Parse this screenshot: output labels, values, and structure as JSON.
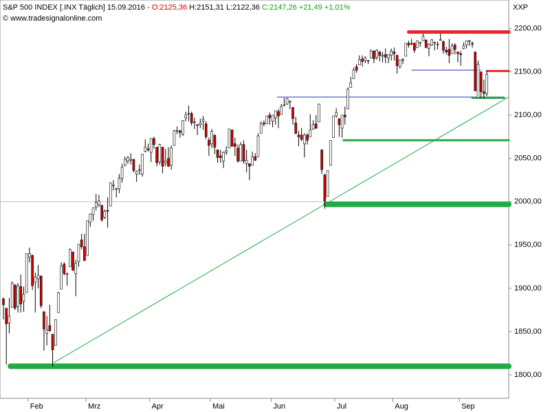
{
  "header": {
    "title": "S&P 500 INDEX [.INX  Täglich]",
    "date": "15.09.2016",
    "open": "- O:2125,36",
    "high": "H:2151,31",
    "low": "L:2122,36",
    "close": "C:2147,26 +21,49 +1,01%",
    "source": "© www.tradesignalonline.com",
    "symbol": "XXP"
  },
  "chart_data": {
    "type": "candlestick",
    "up_color": "#ffffff",
    "down_color": "#d40000",
    "ylim": [
      1773,
      2233
    ],
    "yticks": [
      {
        "value": 1800,
        "label": "1800,00"
      },
      {
        "value": 1850,
        "label": "1850,00"
      },
      {
        "value": 1900,
        "label": "1900,00"
      },
      {
        "value": 1950,
        "label": "1950,00"
      },
      {
        "value": 2000,
        "label": "2000,00"
      },
      {
        "value": 2050,
        "label": "2050,00"
      },
      {
        "value": 2100,
        "label": "2100,00"
      },
      {
        "value": 2150,
        "label": "2150,00"
      },
      {
        "value": 2200,
        "label": "2200,00"
      }
    ],
    "categories": [
      null,
      null,
      null,
      null,
      null,
      null,
      null,
      null,
      null,
      "Feb",
      null,
      null,
      null,
      null,
      null,
      null,
      null,
      null,
      null,
      null,
      null,
      null,
      null,
      null,
      null,
      null,
      null,
      null,
      null,
      "Mrz",
      null,
      null,
      null,
      null,
      null,
      null,
      null,
      null,
      null,
      null,
      null,
      null,
      null,
      null,
      null,
      null,
      null,
      null,
      null,
      null,
      null,
      "Apr",
      null,
      null,
      null,
      null,
      null,
      null,
      null,
      null,
      null,
      null,
      null,
      null,
      null,
      null,
      null,
      null,
      null,
      null,
      null,
      null,
      "Mai",
      null,
      null,
      null,
      null,
      null,
      null,
      null,
      null,
      null,
      null,
      null,
      null,
      null,
      null,
      null,
      null,
      null,
      null,
      null,
      null,
      "Jun",
      null,
      null,
      null,
      null,
      null,
      null,
      null,
      null,
      null,
      null,
      null,
      null,
      null,
      null,
      null,
      null,
      null,
      null,
      null,
      null,
      null,
      "Jul",
      null,
      null,
      null,
      null,
      null,
      null,
      null,
      null,
      null,
      null,
      null,
      null,
      null,
      null,
      null,
      null,
      null,
      null,
      null,
      "Aug",
      null,
      null,
      null,
      null,
      null,
      null,
      null,
      null,
      null,
      null,
      null,
      null,
      null,
      null,
      null,
      null,
      null,
      null,
      null,
      null,
      null,
      null,
      "Sep",
      null,
      null,
      null,
      null,
      null,
      null,
      null,
      null,
      null
    ],
    "candles": [
      [
        1888,
        1889,
        1864,
        1881
      ],
      [
        1877,
        1877,
        1812,
        1859
      ],
      [
        1860,
        1889,
        1848,
        1868
      ],
      [
        1878,
        1908,
        1878,
        1906
      ],
      [
        1904,
        1904,
        1875,
        1877
      ],
      [
        1879,
        1906,
        1872,
        1903
      ],
      [
        1902,
        1916,
        1872,
        1882
      ],
      [
        1885,
        1902,
        1873,
        1893
      ],
      [
        1895,
        1940,
        1895,
        1940
      ],
      [
        1936,
        1947,
        1930,
        1940
      ],
      [
        1938,
        1939,
        1898,
        1903
      ],
      [
        1907,
        1918,
        1872,
        1913
      ],
      [
        1911,
        1927,
        1900,
        1915
      ],
      [
        1914,
        1915,
        1877,
        1880
      ],
      [
        1873,
        1873,
        1828,
        1853
      ],
      [
        1848,
        1868,
        1834,
        1852
      ],
      [
        1857,
        1881,
        1850,
        1851
      ],
      [
        1847,
        1847,
        1810,
        1829
      ],
      [
        1834,
        1864,
        1834,
        1864
      ],
      [
        1872,
        1896,
        1872,
        1895
      ],
      [
        1899,
        1930,
        1899,
        1926
      ],
      [
        1928,
        1930,
        1915,
        1917
      ],
      [
        1917,
        1918,
        1903,
        1917
      ],
      [
        1925,
        1946,
        1925,
        1945
      ],
      [
        1942,
        1942,
        1920,
        1921
      ],
      [
        1917,
        1933,
        1891,
        1929
      ],
      [
        1931,
        1951,
        1925,
        1951
      ],
      [
        1956,
        1963,
        1945,
        1948
      ],
      [
        1948,
        1963,
        1932,
        1932
      ],
      [
        1938,
        1978,
        1938,
        1978
      ],
      [
        1976,
        1986,
        1971,
        1986
      ],
      [
        1985,
        1993,
        1978,
        1993
      ],
      [
        1994,
        2009,
        1990,
        1999
      ],
      [
        1996,
        2008,
        1994,
        2001
      ],
      [
        1996,
        1996,
        1977,
        1979
      ],
      [
        1982,
        1991,
        1980,
        1989
      ],
      [
        1990,
        2005,
        1970,
        1989
      ],
      [
        1995,
        2022,
        1995,
        2022
      ],
      [
        2019,
        2025,
        2013,
        2019
      ],
      [
        2015,
        2016,
        2005,
        2015
      ],
      [
        2015,
        2032,
        2010,
        2027
      ],
      [
        2027,
        2044,
        2022,
        2040
      ],
      [
        2042,
        2052,
        2041,
        2049
      ],
      [
        2047,
        2053,
        2044,
        2051
      ],
      [
        2048,
        2056,
        2043,
        2049
      ],
      [
        2049,
        2049,
        2034,
        2036
      ],
      [
        2032,
        2036,
        2023,
        2035
      ],
      [
        2037,
        2043,
        2031,
        2037
      ],
      [
        2032,
        2055,
        2029,
        2055
      ],
      [
        2058,
        2072,
        2057,
        2063
      ],
      [
        2061,
        2067,
        2058,
        2060
      ],
      [
        2057,
        2073,
        2046,
        2073
      ],
      [
        2073,
        2075,
        2061,
        2066
      ],
      [
        2063,
        2063,
        2041,
        2045
      ],
      [
        2046,
        2067,
        2043,
        2066
      ],
      [
        2063,
        2063,
        2033,
        2041
      ],
      [
        2045,
        2061,
        2041,
        2047
      ],
      [
        2050,
        2063,
        2040,
        2041
      ],
      [
        2042,
        2065,
        2037,
        2062
      ],
      [
        2065,
        2083,
        2065,
        2082
      ],
      [
        2082,
        2087,
        2078,
        2082
      ],
      [
        2082,
        2083,
        2074,
        2080
      ],
      [
        2078,
        2094,
        2076,
        2094
      ],
      [
        2097,
        2104,
        2093,
        2100
      ],
      [
        2102,
        2111,
        2093,
        2102
      ],
      [
        2102,
        2104,
        2088,
        2091
      ],
      [
        2092,
        2097,
        2084,
        2092
      ],
      [
        2089,
        2089,
        2077,
        2088
      ],
      [
        2089,
        2096,
        2085,
        2091
      ],
      [
        2093,
        2099,
        2083,
        2095
      ],
      [
        2090,
        2093,
        2072,
        2075
      ],
      [
        2071,
        2074,
        2053,
        2065
      ],
      [
        2067,
        2084,
        2062,
        2081
      ],
      [
        2077,
        2077,
        2055,
        2063
      ],
      [
        2060,
        2060,
        2045,
        2051
      ],
      [
        2053,
        2060,
        2045,
        2051
      ],
      [
        2047,
        2058,
        2039,
        2057
      ],
      [
        2057,
        2064,
        2054,
        2059
      ],
      [
        2062,
        2084,
        2062,
        2084
      ],
      [
        2083,
        2083,
        2064,
        2064
      ],
      [
        2067,
        2074,
        2053,
        2064
      ],
      [
        2062,
        2066,
        2045,
        2047
      ],
      [
        2047,
        2069,
        2047,
        2066
      ],
      [
        2066,
        2071,
        2044,
        2047
      ],
      [
        2044,
        2060,
        2034,
        2048
      ],
      [
        2044,
        2044,
        2025,
        2041
      ],
      [
        2042,
        2058,
        2042,
        2052
      ],
      [
        2052,
        2056,
        2047,
        2048
      ],
      [
        2052,
        2079,
        2052,
        2076
      ],
      [
        2079,
        2093,
        2079,
        2090
      ],
      [
        2091,
        2094,
        2087,
        2090
      ],
      [
        2090,
        2099,
        2090,
        2099
      ],
      [
        2100,
        2103,
        2089,
        2097
      ],
      [
        2093,
        2100,
        2086,
        2100
      ],
      [
        2097,
        2105,
        2089,
        2105
      ],
      [
        2104,
        2107,
        2085,
        2099
      ],
      [
        2101,
        2113,
        2101,
        2110
      ],
      [
        2111,
        2120,
        2110,
        2112
      ],
      [
        2113,
        2120,
        2112,
        2119
      ],
      [
        2115,
        2117,
        2107,
        2116
      ],
      [
        2109,
        2109,
        2089,
        2096
      ],
      [
        2091,
        2098,
        2078,
        2079
      ],
      [
        2077,
        2082,
        2064,
        2075
      ],
      [
        2077,
        2085,
        2070,
        2072
      ],
      [
        2067,
        2079,
        2051,
        2077
      ],
      [
        2077,
        2079,
        2066,
        2071
      ],
      [
        2075,
        2101,
        2075,
        2083
      ],
      [
        2084,
        2094,
        2083,
        2089
      ],
      [
        2090,
        2100,
        2084,
        2085
      ],
      [
        2092,
        2113,
        2092,
        2113
      ],
      [
        2060,
        2060,
        2032,
        2037
      ],
      [
        2031,
        2032,
        1992,
        2001
      ],
      [
        2006,
        2036,
        2006,
        2036
      ],
      [
        2042,
        2071,
        2042,
        2071
      ],
      [
        2074,
        2099,
        2074,
        2099
      ],
      [
        2099,
        2108,
        2097,
        2103
      ],
      [
        2096,
        2096,
        2075,
        2089
      ],
      [
        2085,
        2100,
        2074,
        2100
      ],
      [
        2100,
        2110,
        2089,
        2098
      ],
      [
        2107,
        2132,
        2107,
        2130
      ],
      [
        2132,
        2144,
        2132,
        2137
      ],
      [
        2142,
        2155,
        2142,
        2152
      ],
      [
        2156,
        2159,
        2149,
        2152
      ],
      [
        2158,
        2169,
        2158,
        2164
      ],
      [
        2165,
        2169,
        2156,
        2162
      ],
      [
        2163,
        2168,
        2160,
        2166
      ],
      [
        2163,
        2164,
        2159,
        2163
      ],
      [
        2166,
        2176,
        2166,
        2174
      ],
      [
        2174,
        2175,
        2160,
        2165
      ],
      [
        2167,
        2176,
        2164,
        2175
      ],
      [
        2173,
        2174,
        2162,
        2169
      ],
      [
        2168,
        2173,
        2161,
        2169
      ],
      [
        2170,
        2177,
        2160,
        2167
      ],
      [
        2166,
        2170,
        2160,
        2170
      ],
      [
        2169,
        2177,
        2163,
        2174
      ],
      [
        2173,
        2178,
        2163,
        2171
      ],
      [
        2169,
        2170,
        2148,
        2157
      ],
      [
        2156,
        2164,
        2154,
        2164
      ],
      [
        2164,
        2166,
        2159,
        2164
      ],
      [
        2168,
        2183,
        2168,
        2183
      ],
      [
        2183,
        2186,
        2178,
        2181
      ],
      [
        2183,
        2188,
        2181,
        2182
      ],
      [
        2183,
        2184,
        2172,
        2175
      ],
      [
        2178,
        2186,
        2178,
        2186
      ],
      [
        2183,
        2185,
        2179,
        2184
      ],
      [
        2186,
        2194,
        2186,
        2191
      ],
      [
        2187,
        2187,
        2178,
        2178
      ],
      [
        2177,
        2183,
        2168,
        2182
      ],
      [
        2181,
        2188,
        2180,
        2187
      ],
      [
        2184,
        2185,
        2175,
        2184
      ],
      [
        2182,
        2185,
        2176,
        2182
      ],
      [
        2187,
        2194,
        2187,
        2187
      ],
      [
        2185,
        2186,
        2171,
        2175
      ],
      [
        2175,
        2179,
        2170,
        2173
      ],
      [
        2176,
        2188,
        2160,
        2169
      ],
      [
        2171,
        2183,
        2171,
        2180
      ],
      [
        2181,
        2183,
        2170,
        2176
      ],
      [
        2173,
        2173,
        2161,
        2171
      ],
      [
        2171,
        2174,
        2157,
        2170
      ],
      [
        2177,
        2184,
        2176,
        2180
      ],
      [
        2181,
        2186,
        2177,
        2186
      ],
      [
        2185,
        2187,
        2180,
        2186
      ],
      [
        2183,
        2185,
        2178,
        2182
      ],
      [
        2173,
        2173,
        2128,
        2128
      ],
      [
        2120,
        2163,
        2120,
        2159
      ],
      [
        2150,
        2150,
        2120,
        2127
      ],
      [
        2127,
        2141,
        2119,
        2125
      ],
      [
        2125,
        2151,
        2122,
        2147
      ]
    ],
    "levels": [
      {
        "value": 2000,
        "start": -1.2,
        "end": 174.6,
        "color": "#bbbbbb",
        "width": 1
      },
      {
        "value": 2196,
        "start": 140,
        "end": 174.6,
        "color": "#e8242c",
        "width": 5
      },
      {
        "value": 2151,
        "start": 167,
        "end": 174.6,
        "color": "#e8242c",
        "width": 3
      },
      {
        "value": 2152,
        "start": 141,
        "end": 165,
        "color": "#2233bb",
        "width": 1
      },
      {
        "value": 2121,
        "start": 94.5,
        "end": 173,
        "color": "#2233bb",
        "width": 1
      },
      {
        "value": 2120,
        "start": 162,
        "end": 173,
        "color": "#22aa44",
        "width": 3
      },
      {
        "value": 2071,
        "start": 117.5,
        "end": 174.6,
        "color": "#22aa44",
        "width": 3
      },
      {
        "value": 1997,
        "start": 111.5,
        "end": 174.6,
        "color": "#22aa44",
        "width": 8
      },
      {
        "value": 1810,
        "start": 2.4,
        "end": 174.6,
        "color": "#22aa44",
        "width": 8
      }
    ],
    "trend": {
      "start": 17.3,
      "end": 174.6,
      "values": [
        1814,
        2121
      ],
      "color": "#22aa44",
      "width": 1
    }
  }
}
